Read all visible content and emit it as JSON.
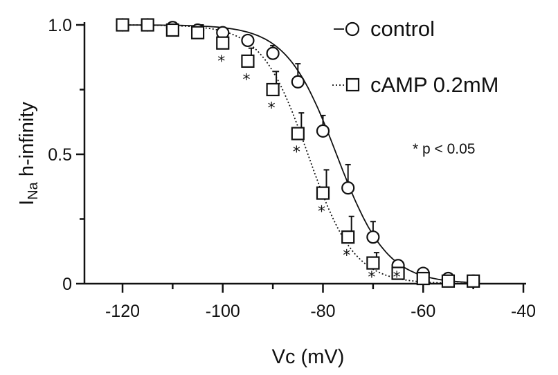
{
  "chart_data": {
    "type": "line",
    "title": "",
    "xlabel": "Vc (mV)",
    "ylabel_main": "I",
    "ylabel_sub": "Na",
    "ylabel_rest": " h-infinity",
    "xlim": [
      -120,
      -40
    ],
    "ylim": [
      0,
      1.0
    ],
    "xticks": [
      -120,
      -100,
      -80,
      -60,
      -40
    ],
    "xtick_labels": [
      "-120",
      "-100",
      "-80",
      "-60",
      "-40"
    ],
    "yticks": [
      0,
      0.5,
      1.0
    ],
    "ytick_labels": [
      "0",
      "0.5",
      "1.0"
    ],
    "grid": false,
    "legend_position": "top-right",
    "annotation": "* p < 0.05",
    "significance_marker": "*",
    "series": [
      {
        "name": "control",
        "marker": "circle",
        "line": "solid",
        "x": [
          -120,
          -115,
          -110,
          -105,
          -100,
          -95,
          -90,
          -85,
          -80,
          -75,
          -70,
          -65,
          -60,
          -55,
          -50
        ],
        "y": [
          1.0,
          1.0,
          0.99,
          0.98,
          0.97,
          0.94,
          0.89,
          0.78,
          0.59,
          0.37,
          0.18,
          0.07,
          0.04,
          0.02,
          0.01
        ],
        "err": [
          0,
          0,
          0.01,
          0.01,
          0.02,
          0.02,
          0.03,
          0.07,
          0.06,
          0.09,
          0.06,
          0.02,
          0.01,
          0.01,
          0.01
        ],
        "fit": {
          "v_half": -77.3,
          "slope": 5.0
        }
      },
      {
        "name": "cAMP 0.2mM",
        "marker": "square",
        "line": "dotted",
        "x": [
          -120,
          -115,
          -110,
          -105,
          -100,
          -95,
          -90,
          -85,
          -80,
          -75,
          -70,
          -65,
          -60,
          -55,
          -50
        ],
        "y": [
          1.0,
          1.0,
          0.98,
          0.97,
          0.93,
          0.86,
          0.75,
          0.58,
          0.35,
          0.18,
          0.08,
          0.04,
          0.02,
          0.01,
          0.01
        ],
        "err": [
          0,
          0,
          0.01,
          0.03,
          0.04,
          0.05,
          0.07,
          0.08,
          0.09,
          0.08,
          0.04,
          0.02,
          0.01,
          0.01,
          0.01
        ],
        "significant": [
          false,
          false,
          false,
          false,
          true,
          true,
          true,
          true,
          true,
          true,
          true,
          true,
          false,
          false,
          false
        ],
        "fit": {
          "v_half": -83.0,
          "slope": 4.6
        }
      }
    ]
  }
}
